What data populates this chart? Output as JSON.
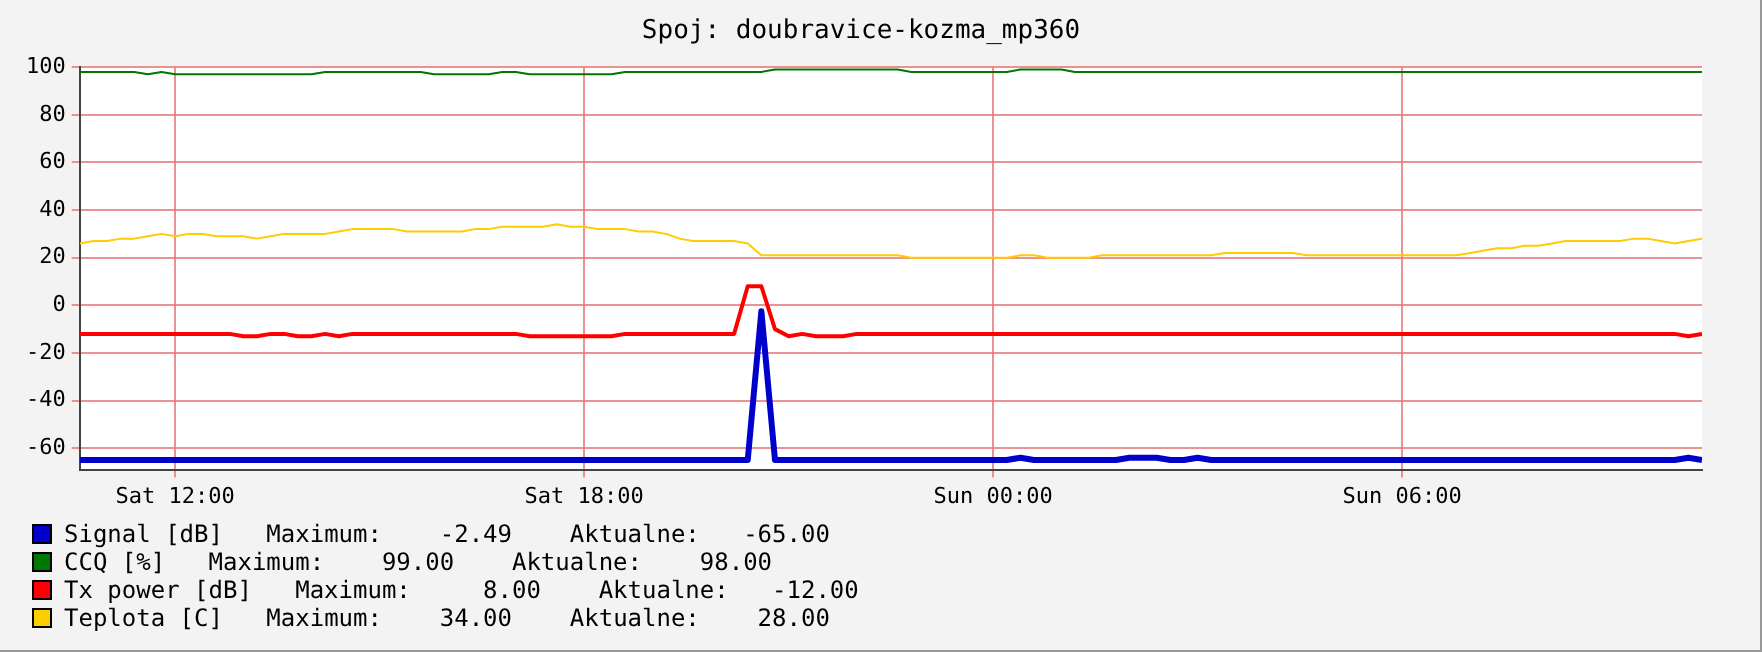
{
  "chart_data": {
    "type": "line",
    "title": "Spoj: doubravice-kozma_mp360",
    "categories": [
      null,
      null,
      null,
      null,
      null,
      null,
      null,
      "Sat 12:00",
      null,
      null,
      null,
      null,
      null,
      null,
      null,
      null,
      null,
      null,
      null,
      null,
      null,
      null,
      null,
      null,
      null,
      null,
      null,
      null,
      null,
      null,
      null,
      null,
      null,
      null,
      null,
      null,
      null,
      "Sat 18:00",
      null,
      null,
      null,
      null,
      null,
      null,
      null,
      null,
      null,
      null,
      null,
      null,
      null,
      null,
      null,
      null,
      null,
      null,
      null,
      null,
      null,
      null,
      null,
      null,
      null,
      null,
      null,
      null,
      null,
      "Sun 00:00",
      null,
      null,
      null,
      null,
      null,
      null,
      null,
      null,
      null,
      null,
      null,
      null,
      null,
      null,
      null,
      null,
      null,
      null,
      null,
      null,
      null,
      null,
      null,
      null,
      null,
      null,
      null,
      null,
      null,
      "Sun 06:00",
      null,
      null,
      null,
      null,
      null,
      null,
      null,
      null,
      null,
      null,
      null,
      null,
      null,
      null,
      null,
      null,
      null,
      null,
      null,
      null,
      null,
      null
    ],
    "ylim": [
      -69,
      100
    ],
    "yticks": [
      -60,
      -40,
      -20,
      0,
      20,
      40,
      60,
      80,
      100
    ],
    "grid": true,
    "legend": "bottom",
    "marker": "none",
    "line_style": "solid",
    "series": [
      {
        "name": "Signal [dB]",
        "color": "#0000cc",
        "values": [
          -65,
          -65,
          -65,
          -65,
          -65,
          -65,
          -65,
          -65,
          -65,
          -65,
          -65,
          -65,
          -65,
          -65,
          -65,
          -65,
          -65,
          -65,
          -65,
          -65,
          -65,
          -65,
          -65,
          -65,
          -65,
          -65,
          -65,
          -65,
          -65,
          -65,
          -65,
          -65,
          -65,
          -65,
          -65,
          -65,
          -65,
          -65,
          -65,
          -65,
          -65,
          -65,
          -65,
          -65,
          -65,
          -65,
          -65,
          -65,
          -65,
          -65,
          -2.49,
          -65,
          -65,
          -65,
          -65,
          -65,
          -65,
          -65,
          -65,
          -65,
          -65,
          -65,
          -65,
          -65,
          -65,
          -65,
          -65,
          -65,
          -65,
          -64,
          -65,
          -65,
          -65,
          -65,
          -65,
          -65,
          -65,
          -64,
          -64,
          -64,
          -65,
          -65,
          -64,
          -65,
          -65,
          -65,
          -65,
          -65,
          -65,
          -65,
          -65,
          -65,
          -65,
          -65,
          -65,
          -65,
          -65,
          -65,
          -65,
          -65,
          -65,
          -65,
          -65,
          -65,
          -65,
          -65,
          -65,
          -65,
          -65,
          -65,
          -65,
          -65,
          -65,
          -65,
          -65,
          -65,
          -65,
          -65,
          -64,
          -65
        ]
      },
      {
        "name": "CCQ [%]",
        "color": "#007700",
        "values": [
          98,
          98,
          98,
          98,
          98,
          97,
          98,
          97,
          97,
          97,
          97,
          97,
          97,
          97,
          97,
          97,
          97,
          97,
          98,
          98,
          98,
          98,
          98,
          98,
          98,
          98,
          97,
          97,
          97,
          97,
          97,
          98,
          98,
          97,
          97,
          97,
          97,
          97,
          97,
          97,
          98,
          98,
          98,
          98,
          98,
          98,
          98,
          98,
          98,
          98,
          98,
          99,
          99,
          99,
          99,
          99,
          99,
          99,
          99,
          99,
          99,
          98,
          98,
          98,
          98,
          98,
          98,
          98,
          98,
          99,
          99,
          99,
          99,
          98,
          98,
          98,
          98,
          98,
          98,
          98,
          98,
          98,
          98,
          98,
          98,
          98,
          98,
          98,
          98,
          98,
          98,
          98,
          98,
          98,
          98,
          98,
          98,
          98,
          98,
          98,
          98,
          98,
          98,
          98,
          98,
          98,
          98,
          98,
          98,
          98,
          98,
          98,
          98,
          98,
          98,
          98,
          98,
          98,
          98,
          98
        ]
      },
      {
        "name": "Tx power [dB]",
        "color": "#ff0000",
        "values": [
          -12,
          -12,
          -12,
          -12,
          -12,
          -12,
          -12,
          -12,
          -12,
          -12,
          -12,
          -12,
          -13,
          -13,
          -12,
          -12,
          -13,
          -13,
          -12,
          -13,
          -12,
          -12,
          -12,
          -12,
          -12,
          -12,
          -12,
          -12,
          -12,
          -12,
          -12,
          -12,
          -12,
          -13,
          -13,
          -13,
          -13,
          -13,
          -13,
          -13,
          -12,
          -12,
          -12,
          -12,
          -12,
          -12,
          -12,
          -12,
          -12,
          8,
          8,
          -10,
          -13,
          -12,
          -13,
          -13,
          -13,
          -12,
          -12,
          -12,
          -12,
          -12,
          -12,
          -12,
          -12,
          -12,
          -12,
          -12,
          -12,
          -12,
          -12,
          -12,
          -12,
          -12,
          -12,
          -12,
          -12,
          -12,
          -12,
          -12,
          -12,
          -12,
          -12,
          -12,
          -12,
          -12,
          -12,
          -12,
          -12,
          -12,
          -12,
          -12,
          -12,
          -12,
          -12,
          -12,
          -12,
          -12,
          -12,
          -12,
          -12,
          -12,
          -12,
          -12,
          -12,
          -12,
          -12,
          -12,
          -12,
          -12,
          -12,
          -12,
          -12,
          -12,
          -12,
          -12,
          -12,
          -12,
          -13,
          -12
        ]
      },
      {
        "name": "Teplota [C]",
        "color": "#ffcc00",
        "values": [
          26,
          27,
          27,
          28,
          28,
          29,
          30,
          29,
          30,
          30,
          29,
          29,
          29,
          28,
          29,
          30,
          30,
          30,
          30,
          31,
          32,
          32,
          32,
          32,
          31,
          31,
          31,
          31,
          31,
          32,
          32,
          33,
          33,
          33,
          33,
          34,
          33,
          33,
          32,
          32,
          32,
          31,
          31,
          30,
          28,
          27,
          27,
          27,
          27,
          26,
          21,
          21,
          21,
          21,
          21,
          21,
          21,
          21,
          21,
          21,
          21,
          20,
          20,
          20,
          20,
          20,
          20,
          20,
          20,
          21,
          21,
          20,
          20,
          20,
          20,
          21,
          21,
          21,
          21,
          21,
          21,
          21,
          21,
          21,
          22,
          22,
          22,
          22,
          22,
          22,
          21,
          21,
          21,
          21,
          21,
          21,
          21,
          21,
          21,
          21,
          21,
          21,
          22,
          23,
          24,
          24,
          25,
          25,
          26,
          27,
          27,
          27,
          27,
          27,
          28,
          28,
          27,
          26,
          27,
          28
        ]
      }
    ],
    "annotations": [
      "Maximum:    -2.49    Aktualne:   -65.00",
      "Maximum:    99.00    Aktualne:    98.00",
      "Maximum:     8.00    Aktualne:   -12.00",
      "Maximum:    34.00    Aktualne:    28.00"
    ]
  }
}
